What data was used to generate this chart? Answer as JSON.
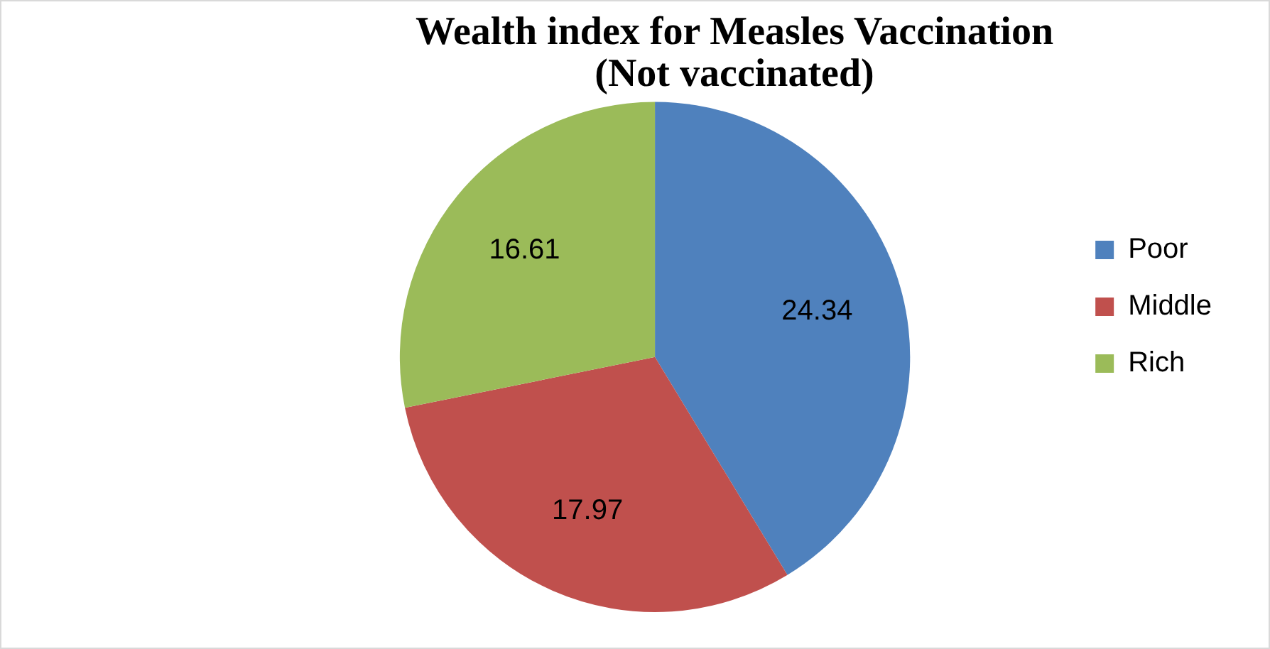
{
  "chart_data": {
    "type": "pie",
    "title": "Wealth index for Measles Vaccination\n(Not vaccinated)",
    "categories": [
      "Poor",
      "Middle",
      "Rich"
    ],
    "values": [
      24.34,
      17.97,
      16.61
    ],
    "colors": [
      "#4f81bd",
      "#c0504d",
      "#9bbb59"
    ],
    "data_labels": true,
    "legend": "right"
  }
}
